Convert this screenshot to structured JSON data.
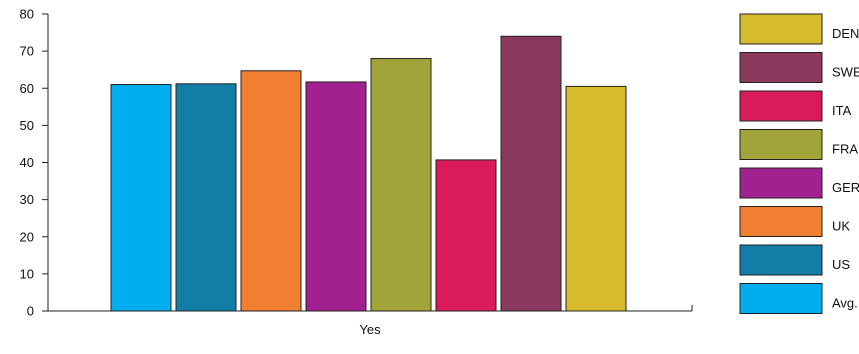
{
  "chart_data": {
    "type": "bar",
    "categories": [
      "Yes"
    ],
    "series": [
      {
        "name": "Avg.",
        "values": [
          61
        ],
        "color": "#00AEEF"
      },
      {
        "name": "US",
        "values": [
          61.2
        ],
        "color": "#127DA6"
      },
      {
        "name": "UK",
        "values": [
          64.7
        ],
        "color": "#F07F32"
      },
      {
        "name": "GER",
        "values": [
          61.7
        ],
        "color": "#A0218F"
      },
      {
        "name": "FRA",
        "values": [
          68
        ],
        "color": "#A1A438"
      },
      {
        "name": "ITA",
        "values": [
          40.7
        ],
        "color": "#D91B5B"
      },
      {
        "name": "SWE",
        "values": [
          74
        ],
        "color": "#8B3A5E"
      },
      {
        "name": "DEN",
        "values": [
          60.5
        ],
        "color": "#D6BC2D"
      }
    ],
    "title": "",
    "xlabel": "",
    "ylabel": "",
    "ylim": [
      0,
      80
    ],
    "yticks": [
      0,
      10,
      20,
      30,
      40,
      50,
      60,
      70,
      80
    ],
    "grid": false,
    "legend_placement": "right"
  }
}
